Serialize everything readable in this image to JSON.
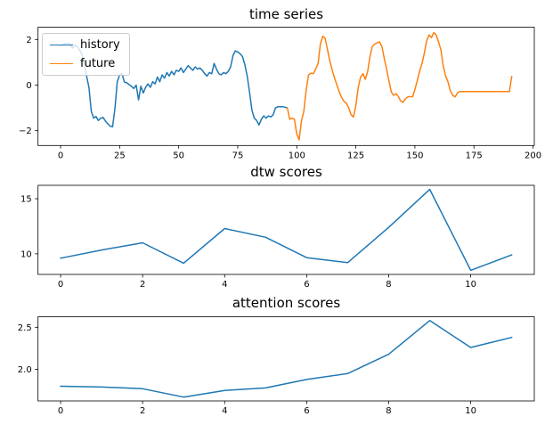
{
  "figure": {
    "background": "#ffffff",
    "text_color": "#000000",
    "spine_color": "#000000"
  },
  "chart_data": [
    {
      "id": "time-series",
      "type": "line",
      "title": "time series",
      "xlabel": "",
      "ylabel": "",
      "grid": false,
      "xlim": [
        -9.55,
        200.55
      ],
      "ylim": [
        -2.65,
        2.54
      ],
      "xticks": [
        0,
        25,
        50,
        75,
        100,
        125,
        150,
        175,
        200
      ],
      "xtick_labels": [
        "0",
        "25",
        "50",
        "75",
        "100",
        "125",
        "150",
        "175",
        "200"
      ],
      "yticks": [
        -2,
        0,
        2
      ],
      "ytick_labels": [
        "−2",
        "0",
        "2"
      ],
      "legend": {
        "position": "upper left",
        "entries": [
          "history",
          "future"
        ]
      },
      "series": [
        {
          "name": "history",
          "color": "#1f77b4",
          "x0": 0,
          "dx": 1,
          "values": [
            1.72,
            1.78,
            1.82,
            1.84,
            1.8,
            1.62,
            1.75,
            1.7,
            1.55,
            1.35,
            0.95,
            0.4,
            -0.1,
            -1.15,
            -1.45,
            -1.38,
            -1.55,
            -1.45,
            -1.42,
            -1.58,
            -1.7,
            -1.8,
            -1.83,
            -1.05,
            0.15,
            0.45,
            0.5,
            0.13,
            0.1,
            0.02,
            -0.05,
            -0.15,
            0.0,
            -0.65,
            -0.05,
            -0.35,
            -0.1,
            0.05,
            -0.1,
            0.15,
            0.05,
            0.35,
            0.15,
            0.45,
            0.3,
            0.55,
            0.4,
            0.6,
            0.45,
            0.65,
            0.6,
            0.75,
            0.55,
            0.7,
            0.85,
            0.75,
            0.65,
            0.8,
            0.7,
            0.75,
            0.65,
            0.5,
            0.4,
            0.55,
            0.5,
            0.95,
            0.7,
            0.5,
            0.45,
            0.55,
            0.5,
            0.6,
            0.8,
            1.3,
            1.5,
            1.45,
            1.38,
            1.25,
            0.9,
            0.4,
            -0.3,
            -1.1,
            -1.45,
            -1.55,
            -1.75,
            -1.5,
            -1.35,
            -1.45,
            -1.35,
            -1.4,
            -1.3,
            -1.0,
            -0.95,
            -0.95,
            -0.95,
            -0.97,
            -1.0
          ]
        },
        {
          "name": "future",
          "color": "#ff7f0e",
          "x0": 96,
          "dx": 1,
          "values": [
            -1.0,
            -1.5,
            -1.45,
            -1.5,
            -2.15,
            -2.4,
            -1.55,
            -1.15,
            -0.2,
            0.45,
            0.52,
            0.5,
            0.7,
            0.95,
            1.8,
            2.15,
            2.05,
            1.55,
            1.05,
            0.65,
            0.3,
            0.0,
            -0.3,
            -0.55,
            -0.72,
            -0.8,
            -1.0,
            -1.3,
            -1.4,
            -0.9,
            -0.1,
            0.35,
            0.5,
            0.25,
            0.6,
            1.25,
            1.7,
            1.8,
            1.85,
            1.9,
            1.7,
            1.2,
            0.7,
            0.2,
            -0.3,
            -0.45,
            -0.38,
            -0.5,
            -0.7,
            -0.75,
            -0.6,
            -0.52,
            -0.5,
            -0.52,
            -0.2,
            0.2,
            0.6,
            0.95,
            1.4,
            1.95,
            2.2,
            2.08,
            2.3,
            2.2,
            1.9,
            1.55,
            0.85,
            0.4,
            0.15,
            -0.25,
            -0.45,
            -0.52,
            -0.35,
            -0.28,
            -0.28,
            -0.28,
            -0.28,
            -0.28,
            -0.28,
            -0.28,
            -0.28,
            -0.28,
            -0.28,
            -0.28,
            -0.28,
            -0.28,
            -0.28,
            -0.28,
            -0.28,
            -0.28,
            -0.28,
            -0.28,
            -0.28,
            -0.28,
            -0.28,
            0.38
          ]
        }
      ]
    },
    {
      "id": "dtw-scores",
      "type": "line",
      "title": "dtw scores",
      "xlabel": "",
      "ylabel": "",
      "grid": false,
      "xlim": [
        -0.55,
        11.55
      ],
      "ylim": [
        8.13,
        16.22
      ],
      "xticks": [
        0,
        2,
        4,
        6,
        8,
        10
      ],
      "xtick_labels": [
        "0",
        "2",
        "4",
        "6",
        "8",
        "10"
      ],
      "yticks": [
        10,
        15
      ],
      "ytick_labels": [
        "10",
        "15"
      ],
      "series": [
        {
          "name": "dtw",
          "color": "#1f77b4",
          "x0": 0,
          "dx": 1,
          "values": [
            9.6,
            10.35,
            11.0,
            9.15,
            12.3,
            11.5,
            9.65,
            9.2,
            12.4,
            15.85,
            8.5,
            9.9
          ]
        }
      ]
    },
    {
      "id": "attention-scores",
      "type": "line",
      "title": "attention scores",
      "xlabel": "",
      "ylabel": "",
      "grid": false,
      "xlim": [
        -0.55,
        11.55
      ],
      "ylim": [
        1.625,
        2.625
      ],
      "xticks": [
        0,
        2,
        4,
        6,
        8,
        10
      ],
      "xtick_labels": [
        "0",
        "2",
        "4",
        "6",
        "8",
        "10"
      ],
      "yticks": [
        2.0,
        2.5
      ],
      "ytick_labels": [
        "2.0",
        "2.5"
      ],
      "series": [
        {
          "name": "attention",
          "color": "#1f77b4",
          "x0": 0,
          "dx": 1,
          "values": [
            1.8,
            1.79,
            1.77,
            1.67,
            1.75,
            1.78,
            1.88,
            1.95,
            2.18,
            2.58,
            2.26,
            2.38
          ]
        }
      ]
    }
  ]
}
